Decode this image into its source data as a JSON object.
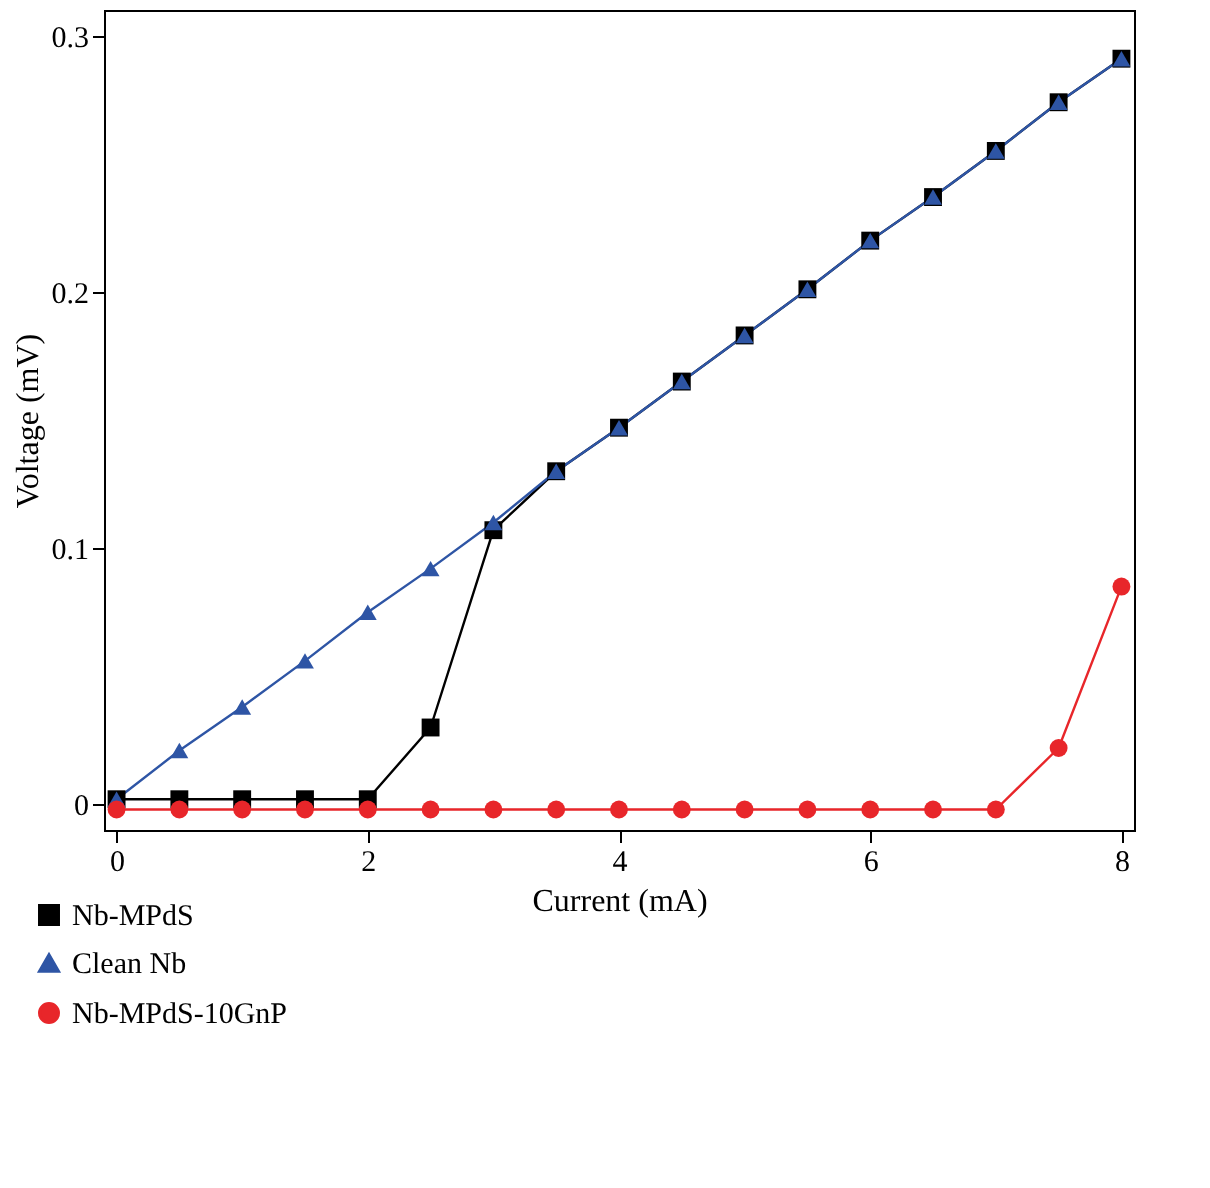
{
  "chart_data": {
    "type": "line",
    "xlabel": "Current (mA)",
    "ylabel": "Voltage (mV)",
    "xlim": [
      -0.1,
      8.1
    ],
    "ylim": [
      -0.01,
      0.31
    ],
    "xticks": [
      0,
      2,
      4,
      6,
      8
    ],
    "yticks": [
      {
        "value": 0,
        "label": "0"
      },
      0.1,
      0.2,
      0.3
    ],
    "grid": false,
    "legend": "bottom left",
    "x": [
      0,
      0.5,
      1,
      1.5,
      2,
      2.5,
      3,
      3.5,
      4,
      4.5,
      5,
      5.5,
      6,
      6.5,
      7,
      7.5,
      8
    ],
    "series": [
      {
        "name": "Nb-MPdS",
        "color": "#000000",
        "marker": "square",
        "values": [
          0.002,
          0.002,
          0.002,
          0.002,
          0.002,
          0.03,
          0.107,
          0.13,
          0.147,
          0.165,
          0.183,
          0.201,
          0.22,
          0.237,
          0.255,
          0.274,
          0.291
        ]
      },
      {
        "name": "Clean Nb",
        "color": "#2e55a5",
        "marker": "triangle",
        "values": [
          0.002,
          0.021,
          0.038,
          0.056,
          0.075,
          0.092,
          0.11,
          0.13,
          0.147,
          0.165,
          0.183,
          0.201,
          0.22,
          0.237,
          0.255,
          0.274,
          0.291
        ]
      },
      {
        "name": "Nb-MPdS-10GnP",
        "color": "#e8262a",
        "marker": "circle",
        "values": [
          -0.002,
          -0.002,
          -0.002,
          -0.002,
          -0.002,
          -0.002,
          -0.002,
          -0.002,
          -0.002,
          -0.002,
          -0.002,
          -0.002,
          -0.002,
          -0.002,
          -0.002,
          0.022,
          0.085
        ]
      }
    ]
  }
}
